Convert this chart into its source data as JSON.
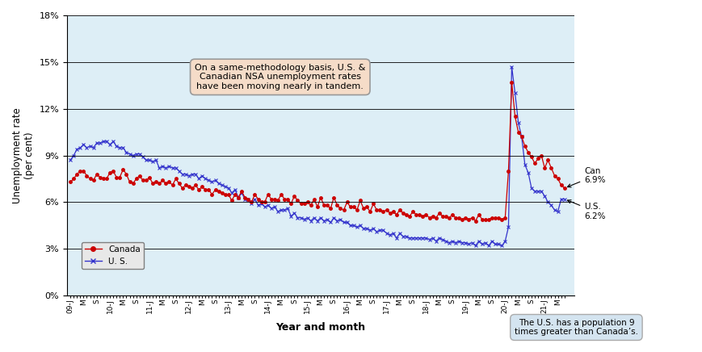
{
  "title": "",
  "ylabel": "Unemployment rate\n(per cent)",
  "xlabel": "Year and month",
  "ylim": [
    0,
    18
  ],
  "yticks": [
    0,
    3,
    6,
    9,
    12,
    15,
    18
  ],
  "ytick_labels": [
    "0%",
    "3%",
    "6%",
    "9%",
    "12%",
    "15%",
    "18%"
  ],
  "background_color": "#ddeef6",
  "annotation_box_text": "On a same-methodology basis, U.S. &\nCanadian NSA unemployment rates\nhave been moving nearly in tandem.",
  "note_box_text": "The U.S. has a population 9\ntimes greater than Canada’s.",
  "can_label": "Can\n6.9%",
  "us_label": "U.S.\n6.2%",
  "canada_color": "#cc0000",
  "us_color": "#3333cc",
  "canada_data": [
    7.3,
    7.5,
    7.8,
    8.0,
    8.0,
    7.7,
    7.5,
    7.4,
    7.8,
    7.6,
    7.5,
    7.5,
    7.9,
    8.0,
    7.6,
    7.6,
    8.1,
    7.8,
    7.3,
    7.2,
    7.5,
    7.7,
    7.4,
    7.4,
    7.6,
    7.2,
    7.3,
    7.2,
    7.4,
    7.2,
    7.3,
    7.1,
    7.5,
    7.2,
    6.9,
    7.1,
    7.0,
    6.9,
    7.1,
    6.8,
    7.0,
    6.8,
    6.8,
    6.5,
    6.8,
    6.7,
    6.6,
    6.5,
    6.5,
    6.1,
    6.5,
    6.3,
    6.7,
    6.3,
    6.2,
    6.0,
    6.5,
    6.2,
    6.0,
    6.0,
    6.5,
    6.2,
    6.2,
    6.1,
    6.5,
    6.2,
    6.2,
    5.9,
    6.4,
    6.1,
    5.9,
    5.9,
    6.0,
    5.8,
    6.2,
    5.7,
    6.3,
    5.8,
    5.8,
    5.6,
    6.3,
    5.8,
    5.6,
    5.5,
    6.0,
    5.7,
    5.7,
    5.5,
    6.1,
    5.6,
    5.7,
    5.4,
    5.9,
    5.5,
    5.5,
    5.4,
    5.5,
    5.3,
    5.4,
    5.2,
    5.5,
    5.3,
    5.2,
    5.1,
    5.4,
    5.2,
    5.2,
    5.1,
    5.2,
    5.0,
    5.1,
    5.0,
    5.3,
    5.1,
    5.1,
    5.0,
    5.2,
    5.0,
    5.0,
    4.9,
    5.0,
    4.9,
    5.0,
    4.8,
    5.2,
    4.9,
    4.9,
    4.9,
    5.0,
    5.0,
    5.0,
    4.9,
    5.0,
    8.0,
    13.7,
    11.5,
    10.5,
    10.2,
    9.6,
    9.2,
    8.9,
    8.5,
    8.8,
    9.0,
    8.2,
    8.7,
    8.2,
    7.7,
    7.5,
    7.1,
    6.9
  ],
  "us_data": [
    8.7,
    9.0,
    9.4,
    9.5,
    9.7,
    9.5,
    9.6,
    9.5,
    9.8,
    9.8,
    9.9,
    9.9,
    9.7,
    9.9,
    9.6,
    9.5,
    9.5,
    9.2,
    9.1,
    9.0,
    9.1,
    9.1,
    8.9,
    8.7,
    8.7,
    8.6,
    8.7,
    8.2,
    8.3,
    8.2,
    8.3,
    8.2,
    8.2,
    8.0,
    7.8,
    7.8,
    7.7,
    7.8,
    7.8,
    7.5,
    7.7,
    7.5,
    7.4,
    7.3,
    7.4,
    7.2,
    7.1,
    7.0,
    6.9,
    6.6,
    6.8,
    6.3,
    6.6,
    6.2,
    6.2,
    5.9,
    6.2,
    5.8,
    5.9,
    5.7,
    5.8,
    5.6,
    5.7,
    5.4,
    5.5,
    5.5,
    5.6,
    5.1,
    5.3,
    5.0,
    5.0,
    4.9,
    5.0,
    4.8,
    5.0,
    4.8,
    5.0,
    4.8,
    4.9,
    4.7,
    5.0,
    4.8,
    4.9,
    4.7,
    4.7,
    4.5,
    4.5,
    4.4,
    4.5,
    4.3,
    4.3,
    4.2,
    4.3,
    4.1,
    4.2,
    4.2,
    4.0,
    3.9,
    4.0,
    3.7,
    4.0,
    3.8,
    3.8,
    3.7,
    3.7,
    3.7,
    3.7,
    3.7,
    3.7,
    3.6,
    3.7,
    3.5,
    3.7,
    3.6,
    3.5,
    3.4,
    3.5,
    3.4,
    3.5,
    3.4,
    3.4,
    3.3,
    3.4,
    3.2,
    3.5,
    3.3,
    3.4,
    3.2,
    3.5,
    3.3,
    3.3,
    3.2,
    3.5,
    4.4,
    14.7,
    13.0,
    11.1,
    10.2,
    8.4,
    7.9,
    6.9,
    6.7,
    6.7,
    6.7,
    6.4,
    6.0,
    5.8,
    5.5,
    5.4,
    6.2,
    6.2
  ],
  "x_tick_positions": [
    0,
    3,
    6,
    9,
    12,
    15,
    18,
    21,
    24,
    27,
    30,
    33,
    36,
    39,
    42,
    45,
    48,
    51,
    54,
    57,
    60,
    63,
    66,
    69,
    72,
    75,
    78,
    81,
    84,
    87,
    90,
    93,
    96,
    99,
    102,
    105,
    108,
    111,
    114,
    117,
    120,
    123,
    126,
    129,
    132,
    135,
    138,
    141,
    144,
    147
  ],
  "x_tick_labels": [
    "09-J",
    "M",
    "S",
    "10-J",
    "M",
    "S",
    "11-J",
    "M",
    "S",
    "12-J",
    "M",
    "S",
    "13-J",
    "M",
    "S",
    "14-J",
    "M",
    "S",
    "15-J",
    "M",
    "S",
    "16-J",
    "M",
    "S",
    "17-J",
    "M",
    "S",
    "18-J",
    "M",
    "S",
    "19-J",
    "M",
    "S",
    "20-J",
    "M",
    "S",
    "21-J",
    "M",
    "S",
    "",
    "",
    "",
    "",
    "",
    "",
    "",
    "",
    "",
    "",
    ""
  ]
}
